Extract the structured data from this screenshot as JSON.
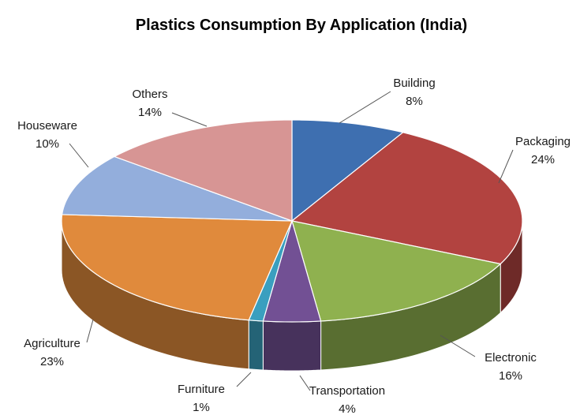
{
  "chart_data": {
    "type": "pie",
    "title": "Plastics Consumption By Application (India)",
    "slices": [
      {
        "name": "Building",
        "value": 8,
        "label": "8%",
        "color": "#3e6fb0"
      },
      {
        "name": "Packaging",
        "value": 24,
        "label": "24%",
        "color": "#b24340"
      },
      {
        "name": "Electronic",
        "value": 16,
        "label": "16%",
        "color": "#8fb14f"
      },
      {
        "name": "Transportation",
        "value": 4,
        "label": "4%",
        "color": "#725094"
      },
      {
        "name": "Furniture",
        "value": 1,
        "label": "1%",
        "color": "#3a9fbf"
      },
      {
        "name": "Agriculture",
        "value": 23,
        "label": "23%",
        "color": "#e08a3c"
      },
      {
        "name": "Houseware",
        "value": 10,
        "label": "10%",
        "color": "#93aedc"
      },
      {
        "name": "Others",
        "value": 14,
        "label": "14%",
        "color": "#d79594"
      }
    ],
    "start_position": "top",
    "direction": "clockwise",
    "style": "3d-perspective",
    "legend": "none",
    "data_labels": "outside-with-leader-lines"
  }
}
